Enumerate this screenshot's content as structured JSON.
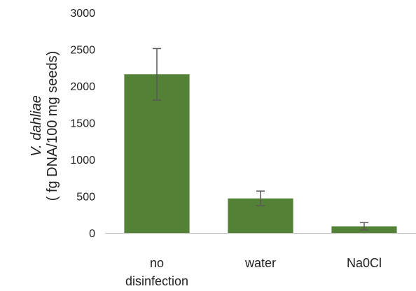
{
  "chart_data": {
    "type": "bar",
    "categories": [
      "no disinfection",
      "water",
      "Na0Cl"
    ],
    "category_lines": [
      [
        "no",
        "disinfection"
      ],
      [
        "water"
      ],
      [
        "Na0Cl"
      ]
    ],
    "values": [
      2160,
      470,
      90
    ],
    "errors": [
      350,
      100,
      50
    ],
    "ylim": [
      0,
      3000
    ],
    "yticks": [
      "0",
      "500",
      "1000",
      "1500",
      "2000",
      "2500",
      "3000"
    ],
    "ylabel_line1": "V. dahliae",
    "ylabel_line2": "( fg DNA/100 mg seeds)",
    "bar_color": "#538135",
    "title": "",
    "xlabel": "",
    "grid": false,
    "legend": "none"
  }
}
